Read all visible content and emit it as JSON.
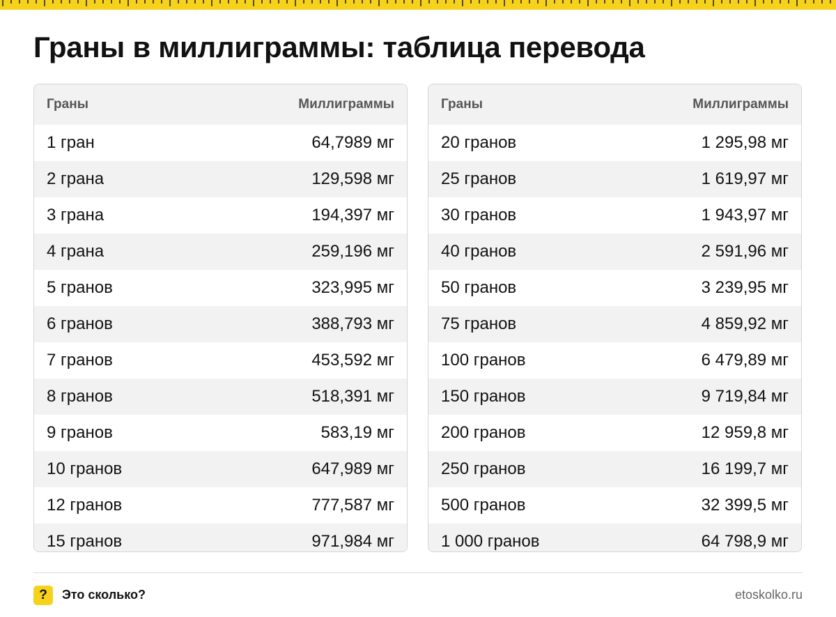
{
  "colors": {
    "accent": "#f7d21d",
    "text": "#111111",
    "stripe": "#f2f2f2",
    "header_text": "#555555",
    "border": "#d5d5d5"
  },
  "title": "Граны в миллиграммы: таблица перевода",
  "tables": [
    {
      "headers": [
        "Граны",
        "Миллиграммы"
      ],
      "rows": [
        [
          "1 гран",
          "64,7989 мг"
        ],
        [
          "2 грана",
          "129,598 мг"
        ],
        [
          "3 грана",
          "194,397 мг"
        ],
        [
          "4 грана",
          "259,196 мг"
        ],
        [
          "5 гранов",
          "323,995 мг"
        ],
        [
          "6 гранов",
          "388,793 мг"
        ],
        [
          "7 гранов",
          "453,592 мг"
        ],
        [
          "8 гранов",
          "518,391 мг"
        ],
        [
          "9 гранов",
          "583,19 мг"
        ],
        [
          "10 гранов",
          "647,989 мг"
        ],
        [
          "12 гранов",
          "777,587 мг"
        ],
        [
          "15 гранов",
          "971,984 мг"
        ]
      ]
    },
    {
      "headers": [
        "Граны",
        "Миллиграммы"
      ],
      "rows": [
        [
          "20 гранов",
          "1 295,98 мг"
        ],
        [
          "25 гранов",
          "1 619,97 мг"
        ],
        [
          "30 гранов",
          "1 943,97 мг"
        ],
        [
          "40 гранов",
          "2 591,96 мг"
        ],
        [
          "50 гранов",
          "3 239,95 мг"
        ],
        [
          "75 гранов",
          "4 859,92 мг"
        ],
        [
          "100 гранов",
          "6 479,89 мг"
        ],
        [
          "150 гранов",
          "9 719,84 мг"
        ],
        [
          "200 гранов",
          "12 959,8 мг"
        ],
        [
          "250 гранов",
          "16 199,7 мг"
        ],
        [
          "500 гранов",
          "32 399,5 мг"
        ],
        [
          "1 000 гранов",
          "64 798,9 мг"
        ]
      ]
    }
  ],
  "footer": {
    "badge_icon": "question-mark-icon",
    "badge_glyph": "?",
    "brand": "Это сколько?",
    "site": "etoskolko.ru"
  }
}
